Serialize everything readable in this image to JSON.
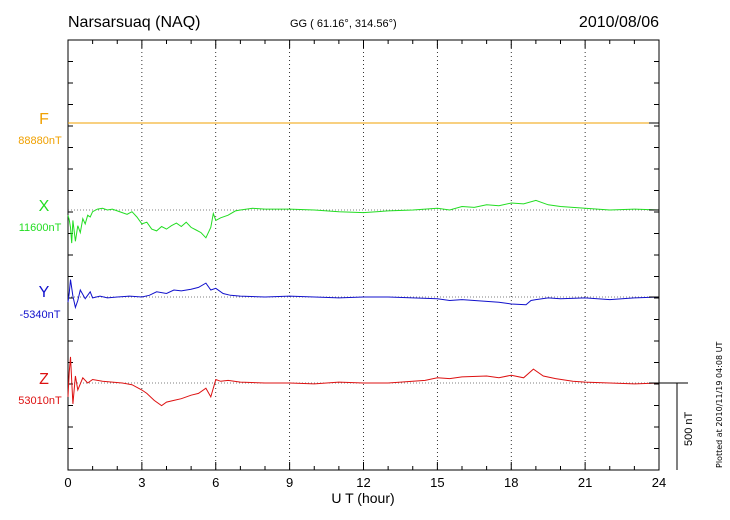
{
  "chart_data": {
    "type": "line",
    "station": "Narsarsuaq (NAQ)",
    "coords": "GG ( 61.16°, 314.56°)",
    "date": "2010/08/06",
    "xlabel": "U T (hour)",
    "xlim": [
      0,
      24
    ],
    "xticks": [
      0,
      3,
      6,
      9,
      12,
      15,
      18,
      21,
      24
    ],
    "grid": true,
    "scale_bar_label": "500 nT",
    "plotted_note": "Plotted at 2010/11/19 04:08 UT",
    "series": [
      {
        "name": "F",
        "baseline_label": "88880nT",
        "color": "#f0a000",
        "x": [
          0,
          24
        ],
        "y": [
          0,
          0
        ]
      },
      {
        "name": "X",
        "baseline_label": "11600nT",
        "color": "#22dd22",
        "x": [
          0,
          0.05,
          0.1,
          0.15,
          0.2,
          0.3,
          0.4,
          0.5,
          0.6,
          0.7,
          0.8,
          0.9,
          1.0,
          1.2,
          1.4,
          1.6,
          1.8,
          2.0,
          2.2,
          2.4,
          2.6,
          2.8,
          3.0,
          3.2,
          3.4,
          3.6,
          3.8,
          4.0,
          4.2,
          4.4,
          4.6,
          4.8,
          5.0,
          5.2,
          5.4,
          5.6,
          5.8,
          5.9,
          6.0,
          6.2,
          6.5,
          6.8,
          7.0,
          7.5,
          8.0,
          9.0,
          10.0,
          11.0,
          12.0,
          13.0,
          14.0,
          14.5,
          15.0,
          15.5,
          16.0,
          16.5,
          17.0,
          17.5,
          18.0,
          18.5,
          19.0,
          19.5,
          20.0,
          21.0,
          22.0,
          23.0,
          24.0
        ],
        "y": [
          -30,
          -55,
          -100,
          -190,
          -60,
          -180,
          -90,
          -130,
          -50,
          -80,
          -30,
          -40,
          -10,
          5,
          10,
          0,
          5,
          -5,
          -15,
          -25,
          -10,
          -40,
          -80,
          -70,
          -110,
          -120,
          -95,
          -110,
          -90,
          -75,
          -95,
          -70,
          -100,
          -115,
          -130,
          -160,
          -100,
          -20,
          -60,
          -45,
          -30,
          -5,
          0,
          10,
          5,
          5,
          0,
          -10,
          -15,
          -5,
          0,
          5,
          10,
          0,
          20,
          15,
          30,
          25,
          40,
          35,
          55,
          30,
          20,
          10,
          0,
          5,
          0
        ]
      },
      {
        "name": "Y",
        "baseline_label": "-5340nT",
        "color": "#1111cc",
        "x": [
          0,
          0.05,
          0.1,
          0.2,
          0.3,
          0.4,
          0.5,
          0.7,
          0.9,
          1.0,
          1.3,
          1.6,
          2.0,
          2.5,
          3.0,
          3.3,
          3.6,
          4.0,
          4.3,
          4.6,
          5.0,
          5.3,
          5.6,
          5.8,
          6.0,
          6.3,
          6.6,
          7.0,
          8.0,
          9.0,
          10.0,
          11.0,
          12.0,
          13.0,
          14.0,
          15.0,
          15.5,
          16.0,
          17.0,
          17.5,
          18.0,
          18.6,
          18.8,
          19.0,
          19.5,
          20.0,
          21.0,
          22.0,
          23.0,
          24.0
        ],
        "y": [
          -30,
          20,
          100,
          5,
          -60,
          -20,
          40,
          -10,
          30,
          -5,
          5,
          -5,
          0,
          5,
          0,
          10,
          30,
          20,
          40,
          35,
          45,
          55,
          80,
          40,
          50,
          20,
          10,
          5,
          0,
          5,
          0,
          -5,
          0,
          0,
          -5,
          -10,
          -20,
          -15,
          -25,
          -30,
          -40,
          -45,
          -20,
          -15,
          -5,
          -10,
          -5,
          -15,
          -5,
          0
        ]
      },
      {
        "name": "Z",
        "baseline_label": "53010nT",
        "color": "#dd1111",
        "x": [
          0,
          0.05,
          0.1,
          0.2,
          0.3,
          0.4,
          0.6,
          0.8,
          1.0,
          1.4,
          1.8,
          2.2,
          2.6,
          3.0,
          3.2,
          3.5,
          3.8,
          4.0,
          4.3,
          4.6,
          5.0,
          5.3,
          5.6,
          5.8,
          6.0,
          6.2,
          6.5,
          7.0,
          8.0,
          9.0,
          10.0,
          11.0,
          12.0,
          13.0,
          14.0,
          14.5,
          15.0,
          15.5,
          16.0,
          17.0,
          17.5,
          18.0,
          18.5,
          18.9,
          19.3,
          19.8,
          20.5,
          21.0,
          22.0,
          23.0,
          24.0
        ],
        "y": [
          -80,
          60,
          150,
          -120,
          40,
          -40,
          30,
          0,
          20,
          10,
          5,
          0,
          -10,
          -40,
          -60,
          -100,
          -130,
          -110,
          -100,
          -90,
          -70,
          -60,
          -30,
          -80,
          20,
          10,
          15,
          5,
          0,
          0,
          -5,
          5,
          0,
          0,
          10,
          15,
          30,
          25,
          35,
          40,
          30,
          45,
          30,
          80,
          40,
          25,
          10,
          5,
          0,
          -5,
          0
        ]
      }
    ]
  }
}
